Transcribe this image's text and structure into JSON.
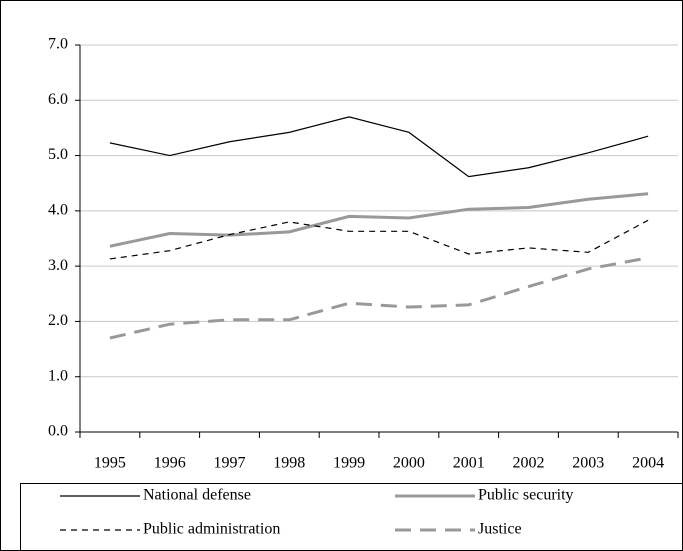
{
  "chart_data": {
    "type": "line",
    "categories": [
      "1995",
      "1996",
      "1997",
      "1998",
      "1999",
      "2000",
      "2001",
      "2002",
      "2003",
      "2004"
    ],
    "series": [
      {
        "name": "National defense",
        "color": "#000000",
        "width": 1.2,
        "dash": "none",
        "values": [
          5.23,
          5.0,
          5.25,
          5.42,
          5.7,
          5.42,
          4.62,
          4.78,
          5.05,
          5.35
        ]
      },
      {
        "name": "Public security",
        "color": "#999999",
        "width": 3,
        "dash": "none",
        "values": [
          3.36,
          3.59,
          3.56,
          3.62,
          3.9,
          3.87,
          4.03,
          4.06,
          4.21,
          4.31
        ]
      },
      {
        "name": "Public administration",
        "color": "#000000",
        "width": 1.2,
        "dash": "6 5",
        "values": [
          3.13,
          3.28,
          3.57,
          3.8,
          3.63,
          3.63,
          3.22,
          3.33,
          3.25,
          3.83
        ]
      },
      {
        "name": "Justice",
        "color": "#999999",
        "width": 3,
        "dash": "16 9",
        "values": [
          1.7,
          1.95,
          2.03,
          2.03,
          2.33,
          2.26,
          2.3,
          2.63,
          2.95,
          3.15
        ]
      }
    ],
    "ylim": [
      0,
      7
    ],
    "yticks": [
      {
        "value": 0,
        "label": "0.0"
      },
      {
        "value": 1,
        "label": "1.0"
      },
      {
        "value": 2,
        "label": "2.0"
      },
      {
        "value": 3,
        "label": "3.0"
      },
      {
        "value": 4,
        "label": "4.0"
      },
      {
        "value": 5,
        "label": "5.0"
      },
      {
        "value": 6,
        "label": "6.0"
      },
      {
        "value": 7,
        "label": "7.0"
      }
    ],
    "grid": true
  }
}
